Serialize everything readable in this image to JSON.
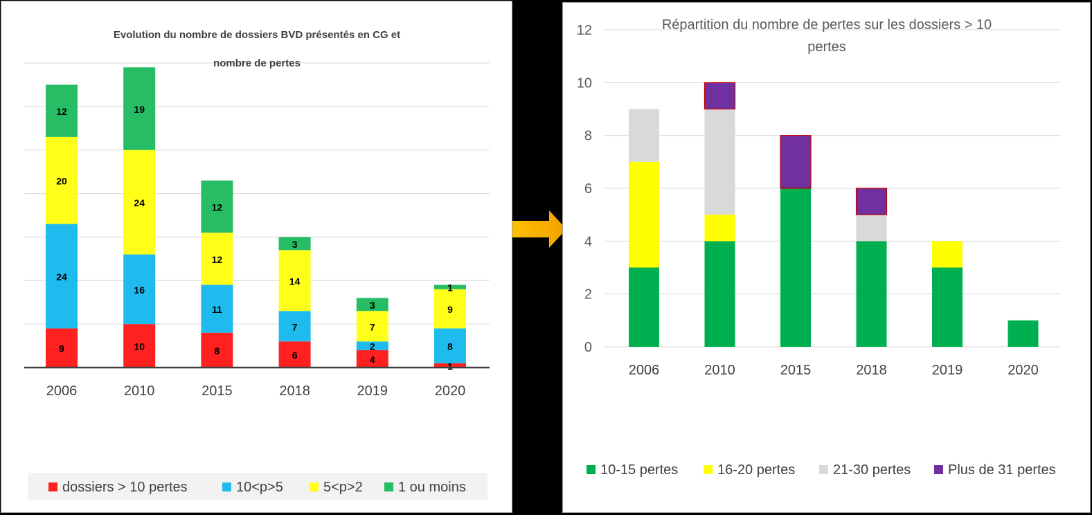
{
  "chart_data": [
    {
      "type": "bar",
      "stacked": true,
      "title_line1": "Evolution du nombre de dossiers BVD présentés en CG et",
      "title_line2": "nombre de pertes",
      "categories": [
        "2006",
        "2010",
        "2015",
        "2018",
        "2019",
        "2020"
      ],
      "ylim": [
        0,
        70
      ],
      "grid": true,
      "legend_position": "bottom",
      "series": [
        {
          "name": "dossiers > 10 pertes",
          "color": "#FF2020",
          "values": [
            9,
            10,
            8,
            6,
            4,
            1
          ]
        },
        {
          "name": "10<p>5",
          "color": "#1FBBEE",
          "values": [
            24,
            16,
            11,
            7,
            2,
            8
          ]
        },
        {
          "name": "5<p>2",
          "color": "#FFFF1A",
          "values": [
            20,
            24,
            12,
            14,
            7,
            9
          ]
        },
        {
          "name": "1 ou moins",
          "color": "#27BD65",
          "values": [
            12,
            19,
            12,
            3,
            3,
            1
          ]
        }
      ],
      "data_labels": true
    },
    {
      "type": "bar",
      "stacked": true,
      "title_line1": "Répartition du nombre de pertes sur les dossiers > 10",
      "title_line2": "pertes",
      "categories": [
        "2006",
        "2010",
        "2015",
        "2018",
        "2019",
        "2020"
      ],
      "ylim": [
        0,
        12
      ],
      "yticks": [
        "0",
        "2",
        "4",
        "6",
        "8",
        "10",
        "12"
      ],
      "grid": true,
      "legend_position": "bottom",
      "series": [
        {
          "name": "10-15 pertes",
          "color": "#00B050",
          "values": [
            3,
            4,
            6,
            4,
            3,
            1
          ]
        },
        {
          "name": "16-20 pertes",
          "color": "#FFFF00",
          "values": [
            4,
            1,
            0,
            0,
            1,
            0
          ]
        },
        {
          "name": "21-30 pertes",
          "color": "#D9D9D9",
          "values": [
            2,
            4,
            0,
            1,
            0,
            0
          ]
        },
        {
          "name": "Plus de 31 pertes",
          "color": "#7030A0",
          "values": [
            0,
            1,
            2,
            1,
            0,
            0
          ]
        }
      ]
    }
  ]
}
